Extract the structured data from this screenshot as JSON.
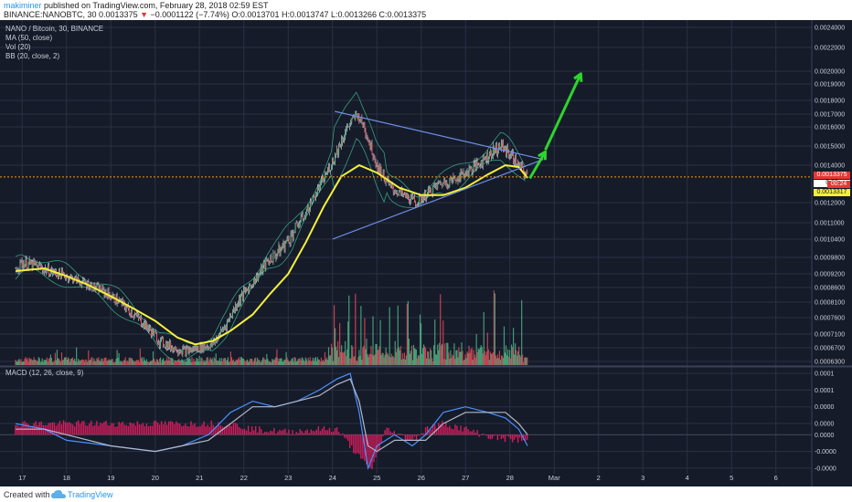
{
  "header": {
    "author": "makiminer",
    "published": " published on TradingView.com, February 28, 2018 02:59 EST",
    "symbol_line": "BINANCE:NANOBTC, 30",
    "last": " 0.0013375 ",
    "arrow": "▼",
    "change": " −0.0001122 (−7.74%)",
    "ohlc": " O:0.0013701 H:0.0013747 L:0.0013266 C:0.0013375"
  },
  "legend": {
    "title": "NANO / Bitcoin, 30, BINANCE",
    "ma": "MA (50, close)",
    "vol": "Vol (20)",
    "bb": "BB (20, close, 2)",
    "macd": "MACD (12, 26, close, 9)"
  },
  "price_labels": {
    "current": "0.0013375",
    "countdown": "00:24",
    "ma_value": "0.0013317",
    "partial": "0.00"
  },
  "footer": {
    "created": "Created with",
    "brand": "TradingView"
  },
  "colors": {
    "background": "#151b29",
    "grid": "#2a3143",
    "ma": "#f5f03c",
    "bb": "#3cb48c",
    "candle_up": "#53b987",
    "candle_down": "#eb4d5c",
    "trend": "#6f8fe6",
    "arrow": "#2ed42e",
    "macd": "#4a90ff",
    "signal": "#b0b8c8",
    "histogram": "#e91e63",
    "price_line": "#ff9800"
  },
  "chart_data": [
    {
      "type": "candlestick",
      "title": "NANO / Bitcoin, 30, BINANCE",
      "x_tick_labels": [
        "17",
        "18",
        "19",
        "20",
        "21",
        "22",
        "23",
        "24",
        "25",
        "26",
        "27",
        "28",
        "Mar",
        "2",
        "3",
        "4",
        "5",
        "6"
      ],
      "y_tick_labels": [
        "0.0024000",
        "0.0022000",
        "0.0020000",
        "0.0019000",
        "0.0018000",
        "0.0017000",
        "0.0016000",
        "0.0015000",
        "0.0014000",
        "0.0012000",
        "0.0011000",
        "0.0010400",
        "0.0009800",
        "0.0009200",
        "0.0008600",
        "0.0008100",
        "0.0007600",
        "0.0007100",
        "0.0006700",
        "0.0006300"
      ],
      "y_tick_values": [
        0.0024,
        0.0022,
        0.002,
        0.0019,
        0.0018,
        0.0017,
        0.0016,
        0.0015,
        0.0014,
        0.0012,
        0.0011,
        0.00104,
        0.00098,
        0.00092,
        0.00086,
        0.00081,
        0.00076,
        0.00071,
        0.00067,
        0.00063
      ],
      "current_price": 0.0013375,
      "ma_last": 0.0013317,
      "price_path": [
        [
          16.85,
          0.00094
        ],
        [
          17.0,
          0.00096
        ],
        [
          17.3,
          0.00095
        ],
        [
          17.6,
          0.00093
        ],
        [
          18.0,
          0.00091
        ],
        [
          18.4,
          0.00088
        ],
        [
          18.8,
          0.00085
        ],
        [
          19.2,
          0.00081
        ],
        [
          19.6,
          0.00076
        ],
        [
          19.9,
          0.00072
        ],
        [
          20.1,
          0.00069
        ],
        [
          20.4,
          0.00067
        ],
        [
          20.7,
          0.00066
        ],
        [
          21.0,
          0.00067
        ],
        [
          21.3,
          0.00068
        ],
        [
          21.6,
          0.00074
        ],
        [
          21.9,
          0.00082
        ],
        [
          22.2,
          0.00088
        ],
        [
          22.5,
          0.00096
        ],
        [
          22.8,
          0.001
        ],
        [
          23.1,
          0.00106
        ],
        [
          23.4,
          0.00115
        ],
        [
          23.7,
          0.00128
        ],
        [
          24.0,
          0.00142
        ],
        [
          24.3,
          0.00158
        ],
        [
          24.55,
          0.0017
        ],
        [
          24.75,
          0.00158
        ],
        [
          25.0,
          0.0014
        ],
        [
          25.3,
          0.00128
        ],
        [
          25.6,
          0.00124
        ],
        [
          25.9,
          0.0012
        ],
        [
          26.1,
          0.00124
        ],
        [
          26.4,
          0.0013
        ],
        [
          26.7,
          0.00132
        ],
        [
          27.0,
          0.00136
        ],
        [
          27.3,
          0.00141
        ],
        [
          27.6,
          0.00147
        ],
        [
          27.8,
          0.0015
        ],
        [
          28.0,
          0.00146
        ],
        [
          28.2,
          0.0014
        ],
        [
          28.4,
          0.0013375
        ]
      ],
      "ma_path": [
        [
          16.85,
          0.00093
        ],
        [
          17.5,
          0.00094
        ],
        [
          18.0,
          0.00091
        ],
        [
          18.5,
          0.00087
        ],
        [
          19.0,
          0.00083
        ],
        [
          19.5,
          0.00079
        ],
        [
          20.0,
          0.00075
        ],
        [
          20.5,
          0.0007
        ],
        [
          20.9,
          0.00068
        ],
        [
          21.3,
          0.00069
        ],
        [
          21.7,
          0.00072
        ],
        [
          22.2,
          0.00077
        ],
        [
          22.6,
          0.00084
        ],
        [
          23.0,
          0.00092
        ],
        [
          23.4,
          0.00103
        ],
        [
          23.8,
          0.00118
        ],
        [
          24.2,
          0.00134
        ],
        [
          24.6,
          0.0014
        ],
        [
          25.0,
          0.00136
        ],
        [
          25.5,
          0.00128
        ],
        [
          26.0,
          0.00124
        ],
        [
          26.5,
          0.00124
        ],
        [
          27.0,
          0.00128
        ],
        [
          27.5,
          0.00135
        ],
        [
          27.9,
          0.0014
        ],
        [
          28.2,
          0.00139
        ],
        [
          28.4,
          0.0013317
        ]
      ],
      "triangle": {
        "upper": [
          [
            24.05,
            0.00172
          ],
          [
            28.0,
            0.00151
          ]
        ],
        "lower": [
          [
            24.0,
            0.00104
          ],
          [
            28.6,
            0.00134
          ]
        ],
        "apex": [
          28.75,
          0.00143
        ]
      },
      "arrows": [
        [
          [
            28.45,
            0.00133
          ],
          [
            28.8,
            0.00147
          ]
        ],
        [
          [
            28.8,
            0.00148
          ],
          [
            29.6,
            0.00198
          ]
        ]
      ]
    },
    {
      "type": "line",
      "title": "MACD (12, 26, close, 9)",
      "y_tick_labels": [
        "0.0001",
        "0.0001",
        "0.0000",
        "0.0000",
        "0.0000",
        "-0.0000",
        "-0.0000"
      ],
      "y_tick_values": [
        0.00011,
        8e-05,
        5e-05,
        2e-05,
        0.0,
        -3e-05,
        -6e-05
      ],
      "series": [
        {
          "values": [
            [
              16.85,
              2e-05
            ],
            [
              17.5,
              1e-05
            ],
            [
              18.0,
              -1e-05
            ],
            [
              19.0,
              -2e-05
            ],
            [
              20.0,
              -3e-05
            ],
            [
              20.6,
              -2e-05
            ],
            [
              21.2,
              0.0
            ],
            [
              21.7,
              4e-05
            ],
            [
              22.2,
              6e-05
            ],
            [
              22.7,
              5e-05
            ],
            [
              23.2,
              6e-05
            ],
            [
              23.7,
              8e-05
            ],
            [
              24.1,
              0.0001
            ],
            [
              24.4,
              0.00011
            ],
            [
              24.6,
              4e-05
            ],
            [
              24.8,
              -6e-05
            ],
            [
              25.0,
              -2e-05
            ],
            [
              25.4,
              0.0
            ],
            [
              25.8,
              -2e-05
            ],
            [
              26.1,
              0.0
            ],
            [
              26.5,
              4e-05
            ],
            [
              27.0,
              5e-05
            ],
            [
              27.5,
              4e-05
            ],
            [
              27.9,
              3e-05
            ],
            [
              28.2,
              1e-05
            ],
            [
              28.4,
              -2e-05
            ]
          ]
        },
        {
          "values": [
            [
              16.85,
              1e-05
            ],
            [
              17.5,
              1e-05
            ],
            [
              18.0,
              0.0
            ],
            [
              19.0,
              -2e-05
            ],
            [
              20.0,
              -3e-05
            ],
            [
              20.6,
              -2e-05
            ],
            [
              21.2,
              -1e-05
            ],
            [
              21.7,
              2e-05
            ],
            [
              22.2,
              5e-05
            ],
            [
              22.7,
              5e-05
            ],
            [
              23.2,
              6e-05
            ],
            [
              23.7,
              7e-05
            ],
            [
              24.1,
              9e-05
            ],
            [
              24.4,
              0.0001
            ],
            [
              24.6,
              6e-05
            ],
            [
              24.8,
              -2e-05
            ],
            [
              25.0,
              -3e-05
            ],
            [
              25.4,
              -1e-05
            ],
            [
              25.8,
              -1e-05
            ],
            [
              26.1,
              -1e-05
            ],
            [
              26.5,
              2e-05
            ],
            [
              27.0,
              4e-05
            ],
            [
              27.5,
              4e-05
            ],
            [
              27.9,
              4e-05
            ],
            [
              28.2,
              2e-05
            ],
            [
              28.4,
              0.0
            ]
          ]
        }
      ],
      "histogram": [
        [
          21.7,
          2e-05
        ],
        [
          22.2,
          1e-05
        ],
        [
          23.0,
          5e-06
        ],
        [
          23.7,
          1e-05
        ],
        [
          24.1,
          1e-05
        ],
        [
          24.5,
          -3e-05
        ],
        [
          24.7,
          -5e-05
        ],
        [
          24.9,
          -6e-05
        ],
        [
          25.2,
          1e-05
        ],
        [
          25.8,
          -1e-05
        ],
        [
          26.1,
          1e-05
        ],
        [
          26.5,
          2e-05
        ],
        [
          27.0,
          1e-05
        ],
        [
          27.6,
          -5e-06
        ],
        [
          28.2,
          -1e-05
        ]
      ]
    }
  ]
}
